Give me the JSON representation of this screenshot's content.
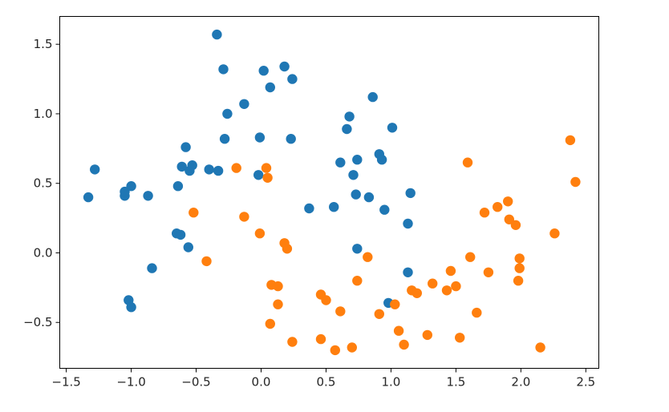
{
  "chart_data": {
    "type": "scatter",
    "title": "",
    "xlabel": "",
    "ylabel": "",
    "xlim": [
      -1.55,
      2.6
    ],
    "ylim": [
      -0.83,
      1.7
    ],
    "grid": false,
    "x_ticks": [
      {
        "value": -1.5,
        "label": "−1.5"
      },
      {
        "value": -1.0,
        "label": "−1.0"
      },
      {
        "value": -0.5,
        "label": "−0.5"
      },
      {
        "value": 0.0,
        "label": "0.0"
      },
      {
        "value": 0.5,
        "label": "0.5"
      },
      {
        "value": 1.0,
        "label": "1.0"
      },
      {
        "value": 1.5,
        "label": "1.5"
      },
      {
        "value": 2.0,
        "label": "2.0"
      },
      {
        "value": 2.5,
        "label": "2.5"
      }
    ],
    "y_ticks": [
      {
        "value": -0.5,
        "label": "−0.5"
      },
      {
        "value": 0.0,
        "label": "0.0"
      },
      {
        "value": 0.5,
        "label": "0.5"
      },
      {
        "value": 1.0,
        "label": "1.0"
      },
      {
        "value": 1.5,
        "label": "1.5"
      }
    ],
    "series": [
      {
        "color": "#1f77b4",
        "points": [
          [
            -1.33,
            0.4
          ],
          [
            -1.28,
            0.6
          ],
          [
            -1.05,
            0.41
          ],
          [
            -1.05,
            0.44
          ],
          [
            -1.0,
            0.48
          ],
          [
            -0.87,
            0.41
          ],
          [
            -1.02,
            -0.34
          ],
          [
            -1.0,
            -0.39
          ],
          [
            -0.84,
            -0.11
          ],
          [
            -0.64,
            0.48
          ],
          [
            -0.61,
            0.62
          ],
          [
            -0.58,
            0.76
          ],
          [
            -0.55,
            0.59
          ],
          [
            -0.53,
            0.63
          ],
          [
            -0.4,
            0.6
          ],
          [
            -0.33,
            0.59
          ],
          [
            -0.34,
            1.57
          ],
          [
            -0.29,
            1.32
          ],
          [
            -0.26,
            1.0
          ],
          [
            -0.28,
            0.82
          ],
          [
            -0.13,
            1.07
          ],
          [
            0.02,
            1.31
          ],
          [
            0.07,
            1.19
          ],
          [
            0.18,
            1.34
          ],
          [
            0.24,
            1.25
          ],
          [
            -0.01,
            0.83
          ],
          [
            0.23,
            0.82
          ],
          [
            -0.02,
            0.56
          ],
          [
            0.37,
            0.32
          ],
          [
            0.56,
            0.33
          ],
          [
            0.61,
            0.65
          ],
          [
            0.66,
            0.89
          ],
          [
            0.68,
            0.98
          ],
          [
            0.71,
            0.56
          ],
          [
            0.73,
            0.42
          ],
          [
            0.74,
            0.67
          ],
          [
            0.83,
            0.4
          ],
          [
            0.86,
            1.12
          ],
          [
            0.91,
            0.71
          ],
          [
            0.93,
            0.67
          ],
          [
            0.95,
            0.31
          ],
          [
            1.01,
            0.9
          ],
          [
            0.74,
            0.03
          ],
          [
            1.13,
            0.21
          ],
          [
            1.15,
            0.43
          ],
          [
            1.13,
            -0.14
          ],
          [
            0.98,
            -0.36
          ],
          [
            -0.65,
            0.14
          ],
          [
            -0.62,
            0.13
          ],
          [
            -0.56,
            0.04
          ]
        ]
      },
      {
        "color": "#ff7f0e",
        "points": [
          [
            -0.19,
            0.61
          ],
          [
            0.04,
            0.61
          ],
          [
            0.05,
            0.54
          ],
          [
            -0.52,
            0.29
          ],
          [
            -0.13,
            0.26
          ],
          [
            -0.01,
            0.14
          ],
          [
            0.18,
            0.07
          ],
          [
            0.2,
            0.03
          ],
          [
            -0.42,
            -0.06
          ],
          [
            0.08,
            -0.23
          ],
          [
            0.13,
            -0.24
          ],
          [
            0.13,
            -0.37
          ],
          [
            0.07,
            -0.51
          ],
          [
            0.24,
            -0.64
          ],
          [
            0.46,
            -0.3
          ],
          [
            0.5,
            -0.34
          ],
          [
            0.61,
            -0.42
          ],
          [
            0.46,
            -0.62
          ],
          [
            0.57,
            -0.7
          ],
          [
            0.7,
            -0.68
          ],
          [
            0.74,
            -0.2
          ],
          [
            0.82,
            -0.03
          ],
          [
            0.91,
            -0.44
          ],
          [
            1.03,
            -0.37
          ],
          [
            1.06,
            -0.56
          ],
          [
            1.1,
            -0.66
          ],
          [
            1.16,
            -0.27
          ],
          [
            1.2,
            -0.29
          ],
          [
            1.28,
            -0.59
          ],
          [
            1.32,
            -0.22
          ],
          [
            1.43,
            -0.27
          ],
          [
            1.46,
            -0.13
          ],
          [
            1.5,
            -0.24
          ],
          [
            1.53,
            -0.61
          ],
          [
            1.59,
            0.65
          ],
          [
            1.61,
            -0.03
          ],
          [
            1.66,
            -0.43
          ],
          [
            1.72,
            0.29
          ],
          [
            1.75,
            -0.14
          ],
          [
            1.82,
            0.33
          ],
          [
            1.9,
            0.37
          ],
          [
            1.91,
            0.24
          ],
          [
            1.96,
            0.2
          ],
          [
            1.98,
            -0.2
          ],
          [
            1.99,
            -0.11
          ],
          [
            1.99,
            -0.04
          ],
          [
            2.15,
            -0.68
          ],
          [
            2.26,
            0.14
          ],
          [
            2.38,
            0.81
          ],
          [
            2.42,
            0.51
          ]
        ]
      }
    ]
  }
}
